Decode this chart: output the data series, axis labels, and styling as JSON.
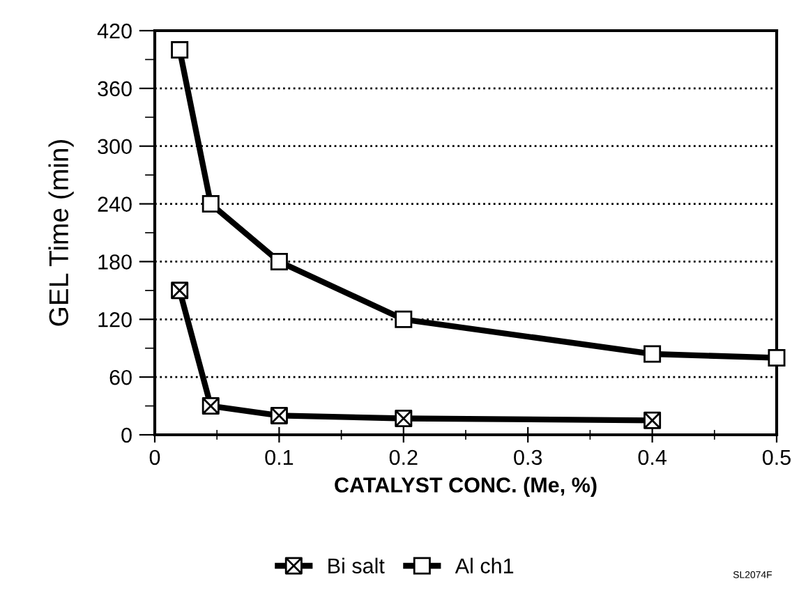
{
  "chart_data": {
    "type": "line",
    "xlabel": "CATALYST CONC. (Me, %)",
    "ylabel": "GEL Time (min)",
    "xlim": [
      0,
      0.5
    ],
    "xticks": [
      0,
      0.1,
      0.2,
      0.3,
      0.4,
      0.5
    ],
    "ylim": [
      0,
      420
    ],
    "yticks": [
      0,
      60,
      120,
      180,
      240,
      300,
      360,
      420
    ],
    "grid": "y",
    "legend": "bottom",
    "line_style": "solid",
    "series": [
      {
        "name": "Bi salt",
        "color": "#000000",
        "marker": "cross",
        "x": [
          0.02,
          0.045,
          0.1,
          0.2,
          0.4
        ],
        "values": [
          150,
          30,
          20,
          17,
          15
        ]
      },
      {
        "name": "Al ch1",
        "color": "#000000",
        "marker": "square",
        "x": [
          0.02,
          0.045,
          0.1,
          0.2,
          0.4,
          0.5
        ],
        "values": [
          400,
          240,
          180,
          120,
          84,
          80
        ]
      }
    ],
    "annotations": [
      "SL2074F"
    ]
  }
}
